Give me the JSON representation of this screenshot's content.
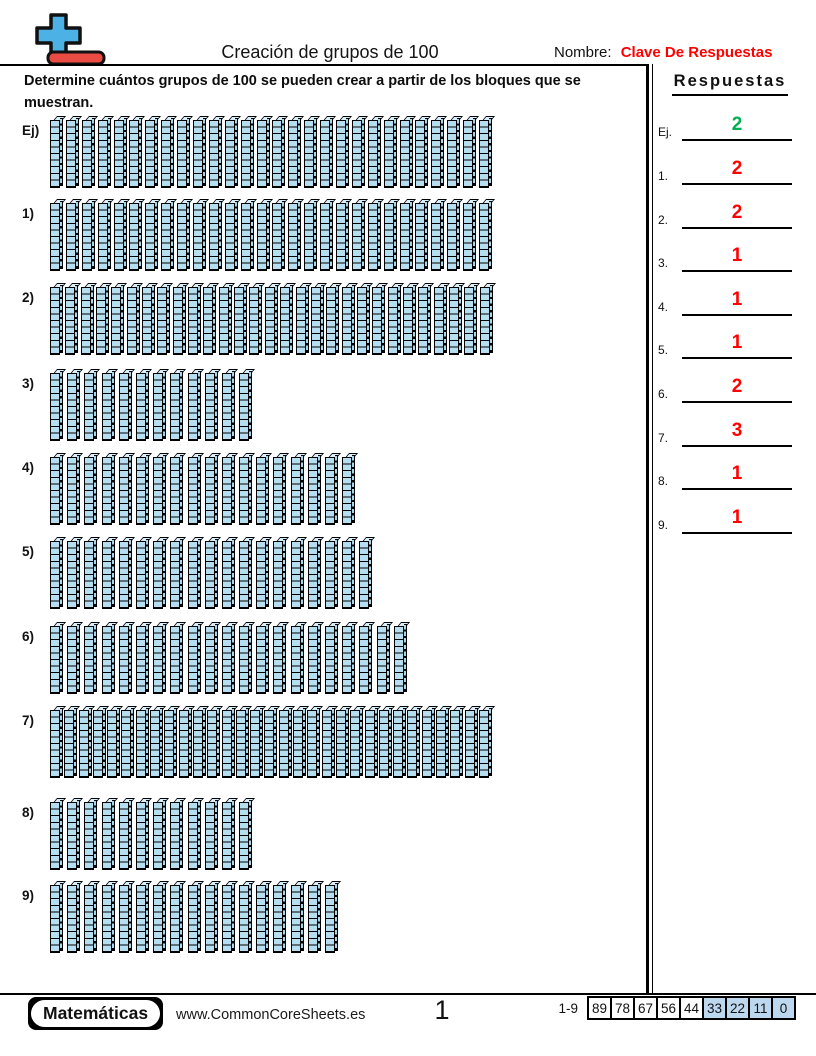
{
  "header": {
    "title": "Creación de grupos de 100",
    "name_label": "Nombre:",
    "name_value": "Clave De Respuestas"
  },
  "instructions": "Determine cuántos grupos de 100 se pueden crear a partir de los bloques que se muestran.",
  "problems": [
    {
      "label": "Ej)",
      "rods": 28
    },
    {
      "label": "1)",
      "rods": 28
    },
    {
      "label": "2)",
      "rods": 29
    },
    {
      "label": "3)",
      "rods": 12
    },
    {
      "label": "4)",
      "rods": 18
    },
    {
      "label": "5)",
      "rods": 19
    },
    {
      "label": "6)",
      "rods": 21
    },
    {
      "label": "7)",
      "rods": 31
    },
    {
      "label": "8)",
      "rods": 12
    },
    {
      "label": "9)",
      "rods": 17
    }
  ],
  "answers": {
    "title": "Respuestas",
    "items": [
      {
        "label": "Ej.",
        "value": "2",
        "color": "#00b050"
      },
      {
        "label": "1.",
        "value": "2",
        "color": "#fe0000"
      },
      {
        "label": "2.",
        "value": "2",
        "color": "#fe0000"
      },
      {
        "label": "3.",
        "value": "1",
        "color": "#fe0000"
      },
      {
        "label": "4.",
        "value": "1",
        "color": "#fe0000"
      },
      {
        "label": "5.",
        "value": "1",
        "color": "#fe0000"
      },
      {
        "label": "6.",
        "value": "2",
        "color": "#fe0000"
      },
      {
        "label": "7.",
        "value": "3",
        "color": "#fe0000"
      },
      {
        "label": "8.",
        "value": "1",
        "color": "#fe0000"
      },
      {
        "label": "9.",
        "value": "1",
        "color": "#fe0000"
      }
    ]
  },
  "footer": {
    "brand": "Matemáticas",
    "website": "www.CommonCoreSheets.es",
    "page_number": "1",
    "score": {
      "label": "1-9",
      "cells": [
        {
          "value": "89",
          "highlight": false
        },
        {
          "value": "78",
          "highlight": false
        },
        {
          "value": "67",
          "highlight": false
        },
        {
          "value": "56",
          "highlight": false
        },
        {
          "value": "44",
          "highlight": false
        },
        {
          "value": "33",
          "highlight": true
        },
        {
          "value": "22",
          "highlight": true
        },
        {
          "value": "11",
          "highlight": true
        },
        {
          "value": "0",
          "highlight": true
        }
      ]
    }
  },
  "colors": {
    "name_value": "#ff0000",
    "rod_face": "#b5def0",
    "rod_top": "#d9effa",
    "rod_side": "#a6d6ec",
    "logo_blue": "#4cb2e6",
    "logo_red": "#ea4b43",
    "score_highlight": "#bdd7ee"
  }
}
